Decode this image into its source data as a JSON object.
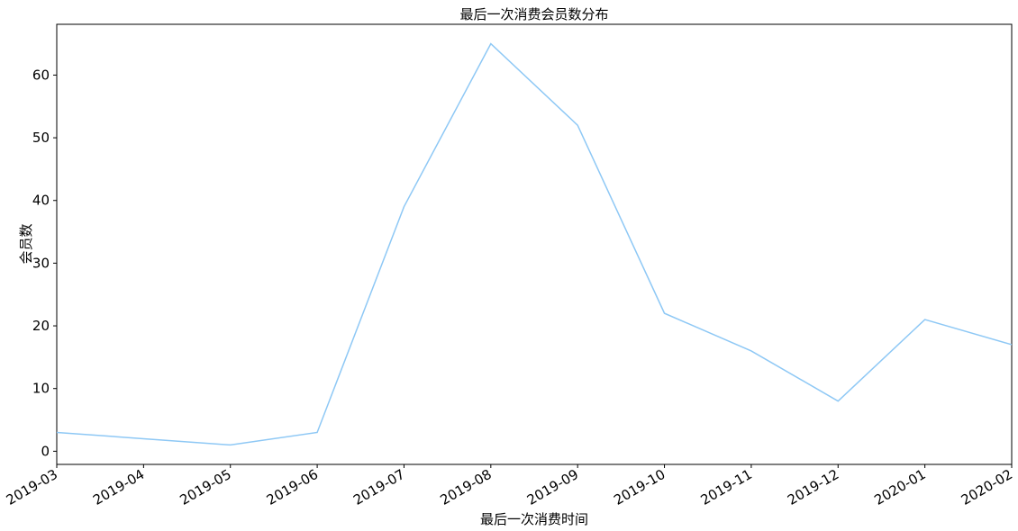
{
  "chart_data": {
    "type": "line",
    "title": "最后一次消费会员数分布",
    "xlabel": "最后一次消费时间",
    "ylabel": "会员数",
    "x": [
      "2019-03",
      "2019-04",
      "2019-05",
      "2019-06",
      "2019-07",
      "2019-08",
      "2019-09",
      "2019-10",
      "2019-11",
      "2019-12",
      "2020-01",
      "2020-02"
    ],
    "series": [
      {
        "values": [
          3,
          2,
          1,
          3,
          39,
          65,
          52,
          22,
          16,
          8,
          21,
          17
        ],
        "color": "#8ec8f5"
      }
    ],
    "yticks": [
      0,
      10,
      20,
      30,
      40,
      50,
      60
    ],
    "ylim": [
      -2.1,
      68.1
    ],
    "grid": false,
    "legend": "none"
  }
}
